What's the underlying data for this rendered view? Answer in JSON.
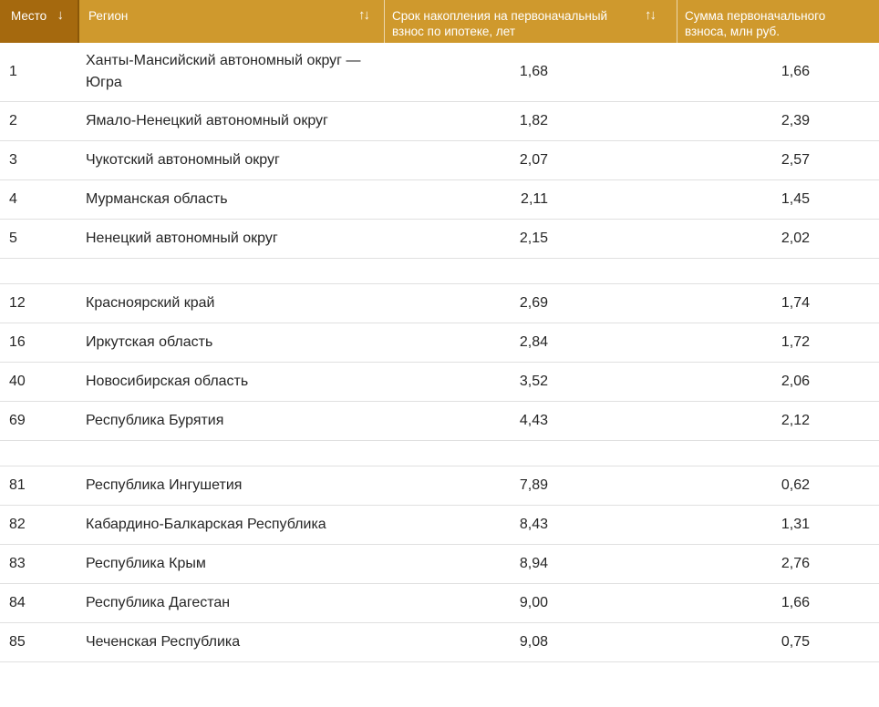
{
  "header": {
    "columns": [
      {
        "label": "Место",
        "sort_icon": "↓"
      },
      {
        "label": "Регион",
        "sort_icon": "↑↓"
      },
      {
        "label": "Срок накопления на первоначальный взнос по ипотеке, лет",
        "sort_icon": "↑↓"
      },
      {
        "label": "Сумма первоначального взноса, млн руб.",
        "sort_icon": ""
      }
    ]
  },
  "rows": [
    {
      "place": "1",
      "region": "Ханты-Мансийский автономный округ — Югра",
      "term": "1,68",
      "sum": "1,66"
    },
    {
      "place": "2",
      "region": "Ямало-Ненецкий автономный округ",
      "term": "1,82",
      "sum": "2,39"
    },
    {
      "place": "3",
      "region": "Чукотский автономный округ",
      "term": "2,07",
      "sum": "2,57"
    },
    {
      "place": "4",
      "region": "Мурманская область",
      "term": "2,11",
      "sum": "1,45"
    },
    {
      "place": "5",
      "region": "Ненецкий автономный округ",
      "term": "2,15",
      "sum": "2,02"
    },
    {
      "gap": true
    },
    {
      "place": "12",
      "region": "Красноярский край",
      "term": "2,69",
      "sum": "1,74"
    },
    {
      "place": "16",
      "region": "Иркутская область",
      "term": "2,84",
      "sum": "1,72"
    },
    {
      "place": "40",
      "region": "Новосибирская область",
      "term": "3,52",
      "sum": "2,06"
    },
    {
      "place": "69",
      "region": "Республика Бурятия",
      "term": "4,43",
      "sum": "2,12"
    },
    {
      "gap": true
    },
    {
      "place": "81",
      "region": "Республика Ингушетия",
      "term": "7,89",
      "sum": "0,62"
    },
    {
      "place": "82",
      "region": "Кабардино-Балкарская Республика",
      "term": "8,43",
      "sum": "1,31"
    },
    {
      "place": "83",
      "region": "Республика Крым",
      "term": "8,94",
      "sum": "2,76"
    },
    {
      "place": "84",
      "region": "Республика Дагестан",
      "term": "9,00",
      "sum": "1,66"
    },
    {
      "place": "85",
      "region": "Чеченская Республика",
      "term": "9,08",
      "sum": "0,75"
    }
  ],
  "colors": {
    "header_place_bg": "#A5690E",
    "header_bg": "#CF992D",
    "header_divider_dark": "#8A5708",
    "header_text": "#FFFFFF",
    "row_divider": "#E0E0E0",
    "body_text": "#262626"
  },
  "chart_data": {
    "type": "table",
    "title": "",
    "columns": [
      "Место",
      "Регион",
      "Срок накопления на первоначальный взнос по ипотеке, лет",
      "Сумма первоначального взноса, млн руб."
    ],
    "rows": [
      [
        "1",
        "Ханты-Мансийский автономный округ — Югра",
        "1,68",
        "1,66"
      ],
      [
        "2",
        "Ямало-Ненецкий автономный округ",
        "1,82",
        "2,39"
      ],
      [
        "3",
        "Чукотский автономный округ",
        "2,07",
        "2,57"
      ],
      [
        "4",
        "Мурманская область",
        "2,11",
        "1,45"
      ],
      [
        "5",
        "Ненецкий автономный округ",
        "2,15",
        "2,02"
      ],
      [
        "12",
        "Красноярский край",
        "2,69",
        "1,74"
      ],
      [
        "16",
        "Иркутская область",
        "2,84",
        "1,72"
      ],
      [
        "40",
        "Новосибирская область",
        "3,52",
        "2,06"
      ],
      [
        "69",
        "Республика Бурятия",
        "4,43",
        "2,12"
      ],
      [
        "81",
        "Республика Ингушетия",
        "7,89",
        "0,62"
      ],
      [
        "82",
        "Кабардино-Балкарская Республика",
        "8,43",
        "1,31"
      ],
      [
        "83",
        "Республика Крым",
        "8,94",
        "2,76"
      ],
      [
        "84",
        "Республика Дагестан",
        "9,00",
        "1,66"
      ],
      [
        "85",
        "Чеченская Республика",
        "9,08",
        "0,75"
      ]
    ],
    "sorted_by": "Срок накопления на первоначальный взнос по ипотеке, лет (возрастание)"
  }
}
